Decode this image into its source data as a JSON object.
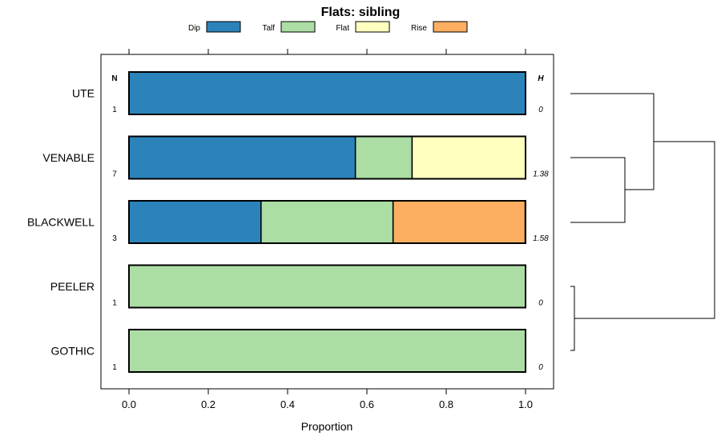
{
  "chart_data": {
    "type": "bar",
    "orientation": "horizontal",
    "stacked": true,
    "title": "Flats: sibling",
    "xlabel": "Proportion",
    "ylabel": "",
    "xlim": [
      0,
      1
    ],
    "x_ticks": [
      "0.0",
      "0.2",
      "0.4",
      "0.6",
      "0.8",
      "1.0"
    ],
    "legend_position": "top",
    "n_header": "N",
    "h_header": "H",
    "series": [
      {
        "name": "Dip",
        "color": "#2b83ba"
      },
      {
        "name": "Talf",
        "color": "#abdda4"
      },
      {
        "name": "Flat",
        "color": "#ffffbf"
      },
      {
        "name": "Rise",
        "color": "#fdae61"
      }
    ],
    "categories": [
      {
        "label": "UTE",
        "n": "1",
        "h": "0",
        "values": [
          1.0,
          0,
          0,
          0
        ]
      },
      {
        "label": "VENABLE",
        "n": "7",
        "h": "1.38",
        "values": [
          0.571,
          0.143,
          0.286,
          0
        ]
      },
      {
        "label": "BLACKWELL",
        "n": "3",
        "h": "1.58",
        "values": [
          0.333,
          0.333,
          0,
          0.333
        ]
      },
      {
        "label": "PEELER",
        "n": "1",
        "h": "0",
        "values": [
          0,
          1.0,
          0,
          0
        ]
      },
      {
        "label": "GOTHIC",
        "n": "1",
        "h": "0",
        "values": [
          0,
          1.0,
          0,
          0
        ]
      }
    ],
    "dendrogram": {
      "type": "hierarchical-clustering",
      "merges": [
        [
          "VENABLE",
          "BLACKWELL"
        ],
        [
          "UTE",
          "VENABLE+BLACKWELL"
        ],
        [
          "PEELER",
          "GOTHIC"
        ],
        [
          "UTE+VENABLE+BLACKWELL",
          "PEELER+GOTHIC"
        ]
      ]
    }
  }
}
